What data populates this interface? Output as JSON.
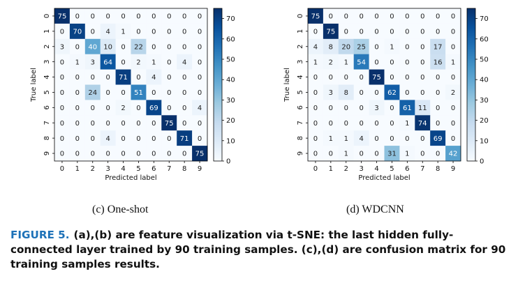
{
  "chart_data": [
    {
      "type": "heatmap",
      "subtitle": "(c) One-shot",
      "xlabel": "Predicted label",
      "ylabel": "True label",
      "x_ticks": [
        "0",
        "1",
        "2",
        "3",
        "4",
        "5",
        "6",
        "7",
        "8",
        "9"
      ],
      "y_ticks": [
        "0",
        "1",
        "2",
        "3",
        "4",
        "5",
        "6",
        "7",
        "8",
        "9"
      ],
      "colorbar_ticks": [
        0,
        10,
        20,
        30,
        40,
        50,
        60,
        70
      ],
      "vmin": 0,
      "vmax": 75,
      "colormap": "Blues",
      "matrix": [
        [
          75,
          0,
          0,
          0,
          0,
          0,
          0,
          0,
          0,
          0
        ],
        [
          0,
          70,
          0,
          4,
          1,
          0,
          0,
          0,
          0,
          0
        ],
        [
          3,
          0,
          40,
          10,
          0,
          22,
          0,
          0,
          0,
          0
        ],
        [
          0,
          1,
          3,
          64,
          0,
          2,
          1,
          0,
          4,
          0
        ],
        [
          0,
          0,
          0,
          0,
          71,
          0,
          4,
          0,
          0,
          0
        ],
        [
          0,
          0,
          24,
          0,
          0,
          51,
          0,
          0,
          0,
          0
        ],
        [
          0,
          0,
          0,
          0,
          2,
          0,
          69,
          0,
          0,
          4
        ],
        [
          0,
          0,
          0,
          0,
          0,
          0,
          0,
          75,
          0,
          0
        ],
        [
          0,
          0,
          0,
          4,
          0,
          0,
          0,
          0,
          71,
          0
        ],
        [
          0,
          0,
          0,
          0,
          0,
          0,
          0,
          0,
          0,
          75
        ]
      ]
    },
    {
      "type": "heatmap",
      "subtitle": "(d) WDCNN",
      "xlabel": "Predicted label",
      "ylabel": "True label",
      "x_ticks": [
        "0",
        "1",
        "2",
        "3",
        "4",
        "5",
        "6",
        "7",
        "8",
        "9"
      ],
      "y_ticks": [
        "0",
        "1",
        "2",
        "3",
        "4",
        "5",
        "6",
        "7",
        "8",
        "9"
      ],
      "colorbar_ticks": [
        0,
        10,
        20,
        30,
        40,
        50,
        60,
        70
      ],
      "vmin": 0,
      "vmax": 75,
      "colormap": "Blues",
      "matrix": [
        [
          75,
          0,
          0,
          0,
          0,
          0,
          0,
          0,
          0,
          0
        ],
        [
          0,
          75,
          0,
          0,
          0,
          0,
          0,
          0,
          0,
          0
        ],
        [
          4,
          8,
          20,
          25,
          0,
          1,
          0,
          0,
          17,
          0
        ],
        [
          1,
          2,
          1,
          54,
          0,
          0,
          0,
          0,
          16,
          1
        ],
        [
          0,
          0,
          0,
          0,
          75,
          0,
          0,
          0,
          0,
          0
        ],
        [
          0,
          3,
          8,
          0,
          0,
          62,
          0,
          0,
          0,
          2
        ],
        [
          0,
          0,
          0,
          0,
          3,
          0,
          61,
          11,
          0,
          0
        ],
        [
          0,
          0,
          0,
          0,
          0,
          0,
          1,
          74,
          0,
          0
        ],
        [
          0,
          1,
          1,
          4,
          0,
          0,
          0,
          0,
          69,
          0
        ],
        [
          0,
          0,
          1,
          0,
          0,
          31,
          1,
          0,
          0,
          42
        ]
      ]
    }
  ],
  "caption": {
    "label": "FIGURE 5.",
    "text": "(a),(b) are feature visualization via t-SNE: the last hidden fully-connected layer trained by 90 training samples. (c),(d) are confusion matrix for 90 training samples results."
  },
  "colors": {
    "figure_label": "#1e72b8",
    "cmap_low": "#f7fbff",
    "cmap_high": "#08306b"
  }
}
